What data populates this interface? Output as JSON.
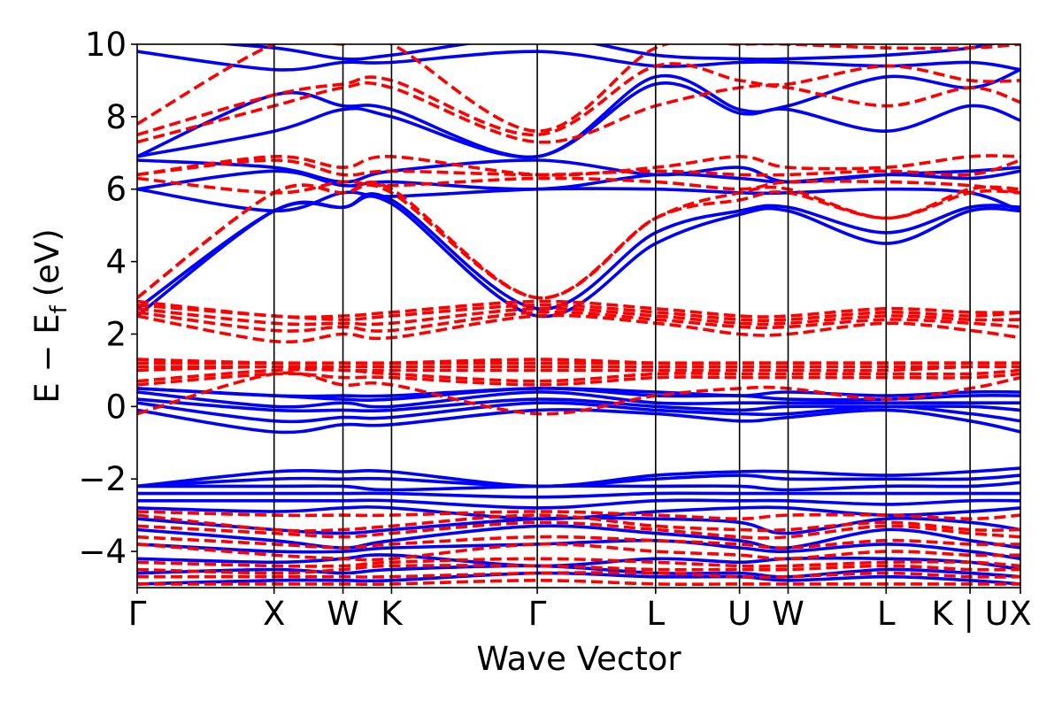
{
  "chart_data": {
    "type": "line",
    "title": "",
    "xlabel": "Wave Vector",
    "ylabel_main": "E − E",
    "ylabel_sub": "f",
    "ylabel_unit": "(eV)",
    "ylim": [
      -5,
      10
    ],
    "yticks": [
      -4,
      -2,
      0,
      2,
      4,
      6,
      8,
      10
    ],
    "ytick_labels": [
      "−4",
      "−2",
      "0",
      "2",
      "4",
      "6",
      "8",
      "10"
    ],
    "xlim": [
      0,
      1
    ],
    "kpath": [
      {
        "label": "Γ",
        "x": 0.0
      },
      {
        "label": "X",
        "x": 0.155
      },
      {
        "label": "W",
        "x": 0.233
      },
      {
        "label": "K",
        "x": 0.288
      },
      {
        "label": "Γ",
        "x": 0.453
      },
      {
        "label": "L",
        "x": 0.587
      },
      {
        "label": "U",
        "x": 0.682
      },
      {
        "label": "W",
        "x": 0.737
      },
      {
        "label": "L",
        "x": 0.848
      },
      {
        "label": "K | U",
        "x": 0.943
      },
      {
        "label": "X",
        "x": 1.0
      }
    ],
    "grid": false,
    "legend": "none",
    "colors": {
      "series_a": "#0000ff",
      "series_b": "#ff0000"
    },
    "series": [
      {
        "style": "solid",
        "color": "#0000ff",
        "bands": [
          [
            -4.9,
            -4.8,
            -4.8,
            -4.8,
            -4.6,
            -4.7,
            -4.7,
            -4.8,
            -4.7,
            -4.8,
            -4.9
          ],
          [
            -4.6,
            -4.5,
            -4.6,
            -4.5,
            -4.4,
            -4.6,
            -4.6,
            -4.7,
            -4.5,
            -4.6,
            -4.7
          ],
          [
            -4.2,
            -4.3,
            -4.2,
            -4.1,
            -4.4,
            -4.2,
            -4.3,
            -4.2,
            -4.2,
            -4.3,
            -4.5
          ],
          [
            -3.8,
            -4.0,
            -4.0,
            -3.9,
            -3.8,
            -3.7,
            -3.9,
            -4.0,
            -3.8,
            -4.0,
            -4.2
          ],
          [
            -3.4,
            -3.7,
            -3.9,
            -3.7,
            -3.3,
            -3.5,
            -3.7,
            -3.9,
            -3.4,
            -3.7,
            -3.9
          ],
          [
            -3.1,
            -3.4,
            -3.5,
            -3.4,
            -3.1,
            -3.1,
            -3.2,
            -3.5,
            -3.1,
            -3.2,
            -3.4
          ],
          [
            -2.8,
            -2.9,
            -2.8,
            -2.8,
            -3.1,
            -2.9,
            -2.8,
            -2.8,
            -3.0,
            -2.9,
            -2.8
          ],
          [
            -2.6,
            -2.6,
            -2.6,
            -2.6,
            -2.8,
            -2.6,
            -2.6,
            -2.6,
            -2.7,
            -2.6,
            -2.6
          ],
          [
            -2.4,
            -2.4,
            -2.4,
            -2.4,
            -2.5,
            -2.4,
            -2.4,
            -2.4,
            -2.4,
            -2.4,
            -2.4
          ],
          [
            -2.2,
            -2.2,
            -2.2,
            -2.3,
            -2.2,
            -2.2,
            -2.2,
            -2.3,
            -2.2,
            -2.2,
            -2.1
          ],
          [
            -2.2,
            -2.0,
            -2.0,
            -2.0,
            -2.2,
            -2.0,
            -1.9,
            -2.0,
            -2.0,
            -2.0,
            -1.9
          ],
          [
            -2.2,
            -1.8,
            -1.8,
            -1.8,
            -2.2,
            -1.9,
            -1.8,
            -1.8,
            -1.9,
            -1.8,
            -1.7
          ],
          [
            -0.1,
            -0.7,
            -0.5,
            -0.5,
            -0.1,
            -0.2,
            -0.4,
            -0.3,
            -0.1,
            -0.4,
            -0.7
          ],
          [
            0.1,
            -0.4,
            -0.3,
            -0.3,
            0.1,
            -0.1,
            -0.2,
            -0.2,
            0.0,
            -0.2,
            -0.4
          ],
          [
            0.2,
            -0.1,
            -0.1,
            -0.1,
            0.2,
            0.0,
            -0.1,
            0.0,
            0.0,
            0.0,
            -0.1
          ],
          [
            0.4,
            0.0,
            0.1,
            0.0,
            0.4,
            0.1,
            0.1,
            0.1,
            0.1,
            0.1,
            0.1
          ],
          [
            0.5,
            0.3,
            0.2,
            0.2,
            0.5,
            0.3,
            0.3,
            0.2,
            0.2,
            0.3,
            0.3
          ],
          [
            0.5,
            0.3,
            0.3,
            0.3,
            0.5,
            0.4,
            0.3,
            0.4,
            0.3,
            0.4,
            0.4
          ],
          [
            2.5,
            5.4,
            5.5,
            5.6,
            2.5,
            4.5,
            5.3,
            5.4,
            4.5,
            5.4,
            5.4
          ],
          [
            2.7,
            5.4,
            5.5,
            5.7,
            2.7,
            4.8,
            5.4,
            5.5,
            4.8,
            5.5,
            5.5
          ],
          [
            6.0,
            5.4,
            5.9,
            5.8,
            6.0,
            6.0,
            5.9,
            5.9,
            6.0,
            5.9,
            5.4
          ],
          [
            6.0,
            6.5,
            6.1,
            6.2,
            6.0,
            6.4,
            6.3,
            6.2,
            6.4,
            6.3,
            6.5
          ],
          [
            6.8,
            6.6,
            6.2,
            6.5,
            6.8,
            6.4,
            6.6,
            6.2,
            6.4,
            6.5,
            6.6
          ],
          [
            6.9,
            7.6,
            8.2,
            8.0,
            6.9,
            8.9,
            8.1,
            8.2,
            7.6,
            8.3,
            7.9
          ],
          [
            6.9,
            8.6,
            8.3,
            8.2,
            6.9,
            9.1,
            8.2,
            8.3,
            9.1,
            8.8,
            9.3
          ],
          [
            9.8,
            9.3,
            9.5,
            9.5,
            9.8,
            9.4,
            9.5,
            9.5,
            9.4,
            9.5,
            9.3
          ],
          [
            10.2,
            9.9,
            9.6,
            9.7,
            10.2,
            9.7,
            9.6,
            9.6,
            9.7,
            9.9,
            10.2
          ]
        ]
      },
      {
        "style": "dashed",
        "color": "#ff0000",
        "bands": [
          [
            -4.9,
            -4.9,
            -4.9,
            -4.9,
            -4.8,
            -4.9,
            -4.9,
            -4.9,
            -4.9,
            -4.9,
            -4.9
          ],
          [
            -4.7,
            -4.7,
            -4.7,
            -4.7,
            -4.6,
            -4.6,
            -4.7,
            -4.7,
            -4.6,
            -4.7,
            -4.7
          ],
          [
            -4.5,
            -4.6,
            -4.5,
            -4.4,
            -4.4,
            -4.5,
            -4.5,
            -4.5,
            -4.4,
            -4.5,
            -4.5
          ],
          [
            -4.3,
            -4.4,
            -4.4,
            -4.3,
            -4.2,
            -4.3,
            -4.4,
            -4.4,
            -4.3,
            -4.3,
            -4.4
          ],
          [
            -3.8,
            -4.1,
            -4.2,
            -4.2,
            -3.8,
            -4.0,
            -4.1,
            -4.2,
            -4.0,
            -4.1,
            -4.1
          ],
          [
            -3.6,
            -3.8,
            -3.9,
            -3.8,
            -3.6,
            -3.7,
            -3.8,
            -3.9,
            -3.7,
            -3.8,
            -3.8
          ],
          [
            -3.3,
            -3.5,
            -3.6,
            -3.5,
            -3.2,
            -3.4,
            -3.6,
            -3.6,
            -3.3,
            -3.5,
            -3.6
          ],
          [
            -3.0,
            -3.4,
            -3.4,
            -3.3,
            -3.0,
            -3.3,
            -3.4,
            -3.4,
            -3.2,
            -3.4,
            -3.4
          ],
          [
            -2.9,
            -3.0,
            -3.0,
            -3.0,
            -2.9,
            -3.0,
            -3.1,
            -3.0,
            -3.0,
            -3.1,
            -3.0
          ],
          [
            -0.2,
            0.9,
            0.6,
            0.6,
            -0.2,
            0.3,
            0.5,
            0.5,
            0.2,
            0.5,
            0.8
          ],
          [
            0.6,
            0.9,
            0.8,
            0.8,
            0.6,
            0.8,
            0.8,
            0.8,
            0.8,
            0.8,
            0.9
          ],
          [
            0.7,
            1.0,
            1.0,
            0.9,
            0.7,
            0.9,
            0.9,
            0.9,
            0.9,
            0.9,
            1.0
          ],
          [
            1.0,
            1.1,
            1.0,
            1.0,
            1.0,
            1.0,
            1.0,
            1.0,
            1.0,
            1.1,
            1.1
          ],
          [
            1.1,
            1.1,
            1.1,
            1.1,
            1.1,
            1.1,
            1.1,
            1.1,
            1.1,
            1.1,
            1.1
          ],
          [
            1.2,
            1.2,
            1.2,
            1.2,
            1.2,
            1.2,
            1.2,
            1.2,
            1.2,
            1.2,
            1.2
          ],
          [
            1.3,
            1.2,
            1.2,
            1.2,
            1.3,
            1.2,
            1.2,
            1.2,
            1.2,
            1.2,
            1.2
          ],
          [
            2.5,
            1.8,
            2.0,
            1.9,
            2.5,
            2.3,
            2.0,
            2.0,
            2.3,
            2.1,
            1.9
          ],
          [
            2.6,
            2.1,
            2.2,
            2.1,
            2.6,
            2.4,
            2.2,
            2.2,
            2.4,
            2.3,
            2.2
          ],
          [
            2.7,
            2.3,
            2.3,
            2.3,
            2.7,
            2.5,
            2.3,
            2.3,
            2.5,
            2.4,
            2.4
          ],
          [
            2.8,
            2.5,
            2.4,
            2.5,
            2.8,
            2.6,
            2.4,
            2.4,
            2.6,
            2.5,
            2.6
          ],
          [
            2.9,
            2.5,
            2.5,
            2.6,
            2.9,
            2.7,
            2.5,
            2.5,
            2.7,
            2.6,
            2.6
          ],
          [
            3.0,
            5.9,
            5.9,
            5.9,
            3.0,
            5.2,
            5.7,
            5.9,
            5.2,
            5.9,
            5.9
          ],
          [
            3.0,
            5.9,
            5.9,
            6.0,
            3.0,
            5.2,
            5.9,
            6.0,
            5.2,
            6.0,
            6.0
          ],
          [
            6.3,
            5.9,
            6.2,
            6.1,
            6.3,
            6.2,
            6.0,
            6.2,
            6.2,
            6.1,
            5.9
          ],
          [
            6.4,
            6.8,
            6.4,
            6.5,
            6.4,
            6.5,
            6.4,
            6.4,
            6.5,
            6.4,
            6.8
          ],
          [
            6.4,
            6.9,
            6.6,
            6.9,
            6.4,
            6.6,
            6.9,
            6.6,
            6.6,
            6.9,
            6.9
          ],
          [
            7.3,
            8.3,
            8.8,
            8.8,
            7.3,
            8.3,
            8.8,
            8.8,
            8.3,
            8.8,
            8.4
          ],
          [
            7.5,
            8.6,
            8.9,
            9.0,
            7.5,
            9.4,
            9.0,
            8.9,
            9.4,
            9.0,
            9.0
          ],
          [
            7.8,
            10.0,
            10.0,
            10.0,
            7.6,
            9.9,
            10.0,
            10.0,
            9.9,
            9.9,
            10.0
          ]
        ]
      }
    ]
  }
}
